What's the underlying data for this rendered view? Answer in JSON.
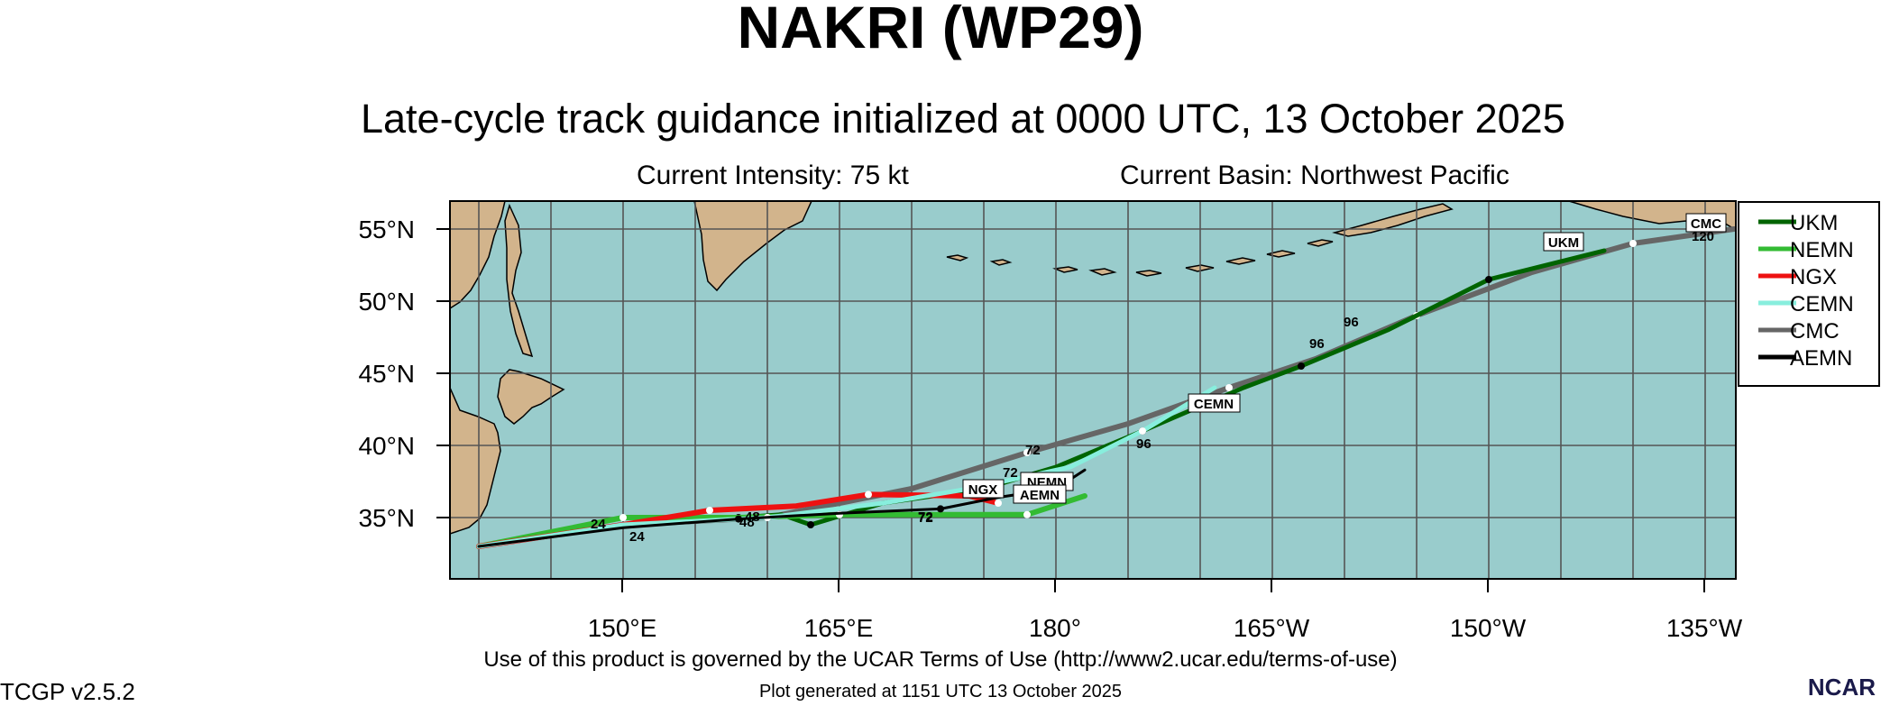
{
  "title": "NAKRI (WP29)",
  "subtitle": "Late-cycle track guidance initialized at 0000 UTC, 13 October 2025",
  "current_intensity": "Current Intensity: 75 kt",
  "current_basin": "Current Basin: Northwest Pacific",
  "footer_terms": "Use of this product is governed by the UCAR Terms of Use (http://www2.ucar.edu/terms-of-use)",
  "footer_version": "TCGP v2.5.2",
  "footer_generated": "Plot generated at 1151 UTC   13 October 2025",
  "logo_text": "NCAR",
  "lat_labels": [
    "55°N",
    "50°N",
    "45°N",
    "40°N",
    "35°N"
  ],
  "lon_labels": [
    "150°E",
    "165°E",
    "180°",
    "165°W",
    "150°W",
    "135°W"
  ],
  "colors": {
    "ocean": "#99cccc",
    "land": "#d2b48c",
    "grid": "#555555",
    "UKM": "#006400",
    "NEMN": "#33bb33",
    "NGX": "#ee1111",
    "CEMN": "#88eedd",
    "CMC": "#666666",
    "AEMN": "#000000"
  },
  "legend": [
    "UKM",
    "NEMN",
    "NGX",
    "CEMN",
    "CMC",
    "AEMN"
  ],
  "track_labels": [
    "UKM",
    "CMC",
    "CEMN",
    "NGX",
    "NEMN",
    "AEMN"
  ],
  "hour_labels": [
    "24",
    "24",
    "48",
    "48",
    "72",
    "72",
    "72",
    "72",
    "96",
    "96",
    "96",
    "120"
  ],
  "tracks": [
    {
      "model": "CMC",
      "points": [
        [
          140,
          33
        ],
        [
          150,
          34.5
        ],
        [
          160,
          35
        ],
        [
          170,
          37
        ],
        [
          178,
          39.5
        ],
        [
          185,
          41.5
        ],
        [
          192,
          44
        ],
        [
          198,
          46
        ],
        [
          205,
          49
        ],
        [
          213,
          52
        ],
        [
          220,
          54
        ],
        [
          227,
          55
        ]
      ]
    },
    {
      "model": "UKM",
      "points": [
        [
          140,
          33
        ],
        [
          150,
          34.5
        ],
        [
          158,
          35
        ],
        [
          161,
          35.2
        ],
        [
          163,
          34.5
        ],
        [
          168,
          36
        ],
        [
          175,
          37
        ],
        [
          180,
          38.5
        ],
        [
          186,
          41
        ],
        [
          193,
          44
        ],
        [
          197,
          45.5
        ],
        [
          203,
          48
        ],
        [
          210,
          51.5
        ],
        [
          218,
          53.5
        ]
      ]
    },
    {
      "model": "NEMN",
      "points": [
        [
          140,
          33
        ],
        [
          146,
          34.2
        ],
        [
          150,
          35
        ],
        [
          158,
          35
        ],
        [
          165,
          35.2
        ],
        [
          170,
          35.2
        ],
        [
          178,
          35.2
        ],
        [
          182,
          36.5
        ]
      ]
    },
    {
      "model": "NGX",
      "points": [
        [
          140,
          33
        ],
        [
          150,
          34.5
        ],
        [
          156,
          35.5
        ],
        [
          162,
          35.8
        ],
        [
          167,
          36.6
        ],
        [
          174,
          36.5
        ],
        [
          176,
          36
        ]
      ]
    },
    {
      "model": "CEMN",
      "points": [
        [
          140,
          33
        ],
        [
          150,
          34.5
        ],
        [
          160,
          35
        ],
        [
          168,
          36
        ],
        [
          174,
          37
        ],
        [
          181,
          38.5
        ],
        [
          186,
          41
        ],
        [
          191,
          44
        ]
      ]
    },
    {
      "model": "AEMN",
      "points": [
        [
          140,
          33
        ],
        [
          150,
          34.3
        ],
        [
          158,
          34.9
        ],
        [
          165,
          35.3
        ],
        [
          172,
          35.6
        ],
        [
          176,
          36.4
        ],
        [
          180,
          37
        ],
        [
          182,
          38.3
        ]
      ]
    }
  ]
}
